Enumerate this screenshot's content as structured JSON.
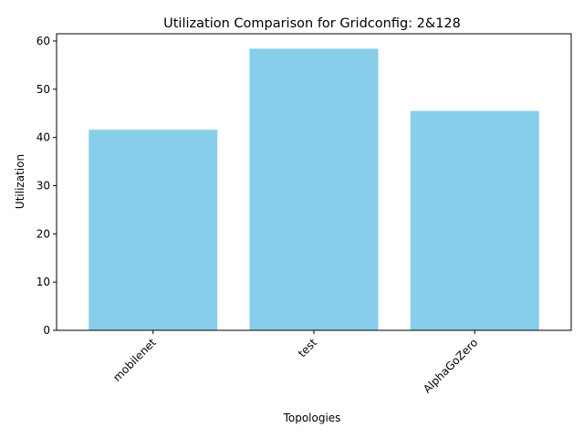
{
  "chart_data": {
    "type": "bar",
    "title": "Utilization Comparison for Gridconfig: 2&128",
    "xlabel": "Topologies",
    "ylabel": "Utilization",
    "categories": [
      "mobilenet",
      "test",
      "AlphaGoZero"
    ],
    "values": [
      41.6,
      58.4,
      45.5
    ],
    "ylim": [
      0,
      61.5
    ],
    "yticks": [
      0,
      10,
      20,
      30,
      40,
      50,
      60
    ],
    "bar_color": "#87CEEB",
    "grid": false,
    "legend": "none"
  }
}
